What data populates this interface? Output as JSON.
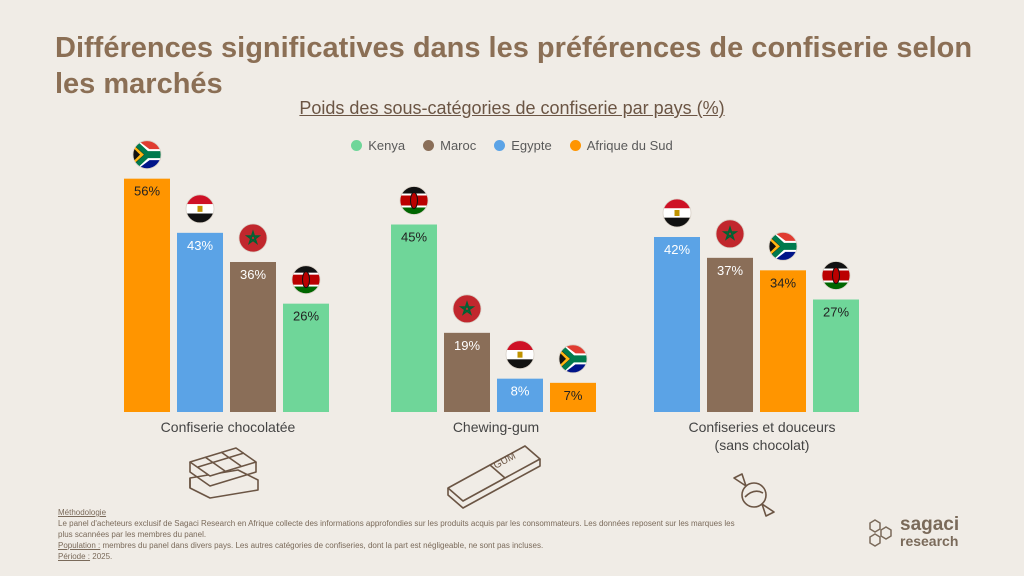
{
  "title": "Différences significatives dans les préférences de confiserie selon les marchés",
  "subtitle": "Poids des sous-catégories de confiserie par pays (%)",
  "colors": {
    "Kenya": "#6fd699",
    "Maroc": "#8a6e58",
    "Egypte": "#5ba3e6",
    "Afrique du Sud": "#ff9500"
  },
  "legend": [
    "Kenya",
    "Maroc",
    "Egypte",
    "Afrique du Sud"
  ],
  "chart_data": {
    "type": "bar",
    "ylabel": "%",
    "ylim": [
      0,
      60
    ],
    "groups": [
      {
        "category": "Confiserie chocolatée",
        "bars": [
          {
            "country": "Afrique du Sud",
            "value": 56,
            "label": "56%"
          },
          {
            "country": "Egypte",
            "value": 43,
            "label": "43%"
          },
          {
            "country": "Maroc",
            "value": 36,
            "label": "36%"
          },
          {
            "country": "Kenya",
            "value": 26,
            "label": "26%"
          }
        ]
      },
      {
        "category": "Chewing-gum",
        "bars": [
          {
            "country": "Kenya",
            "value": 45,
            "label": "45%"
          },
          {
            "country": "Maroc",
            "value": 19,
            "label": "19%"
          },
          {
            "country": "Egypte",
            "value": 8,
            "label": "8%"
          },
          {
            "country": "Afrique du Sud",
            "value": 7,
            "label": "7%"
          }
        ]
      },
      {
        "category": "Confiseries et douceurs (sans chocolat)",
        "bars": [
          {
            "country": "Egypte",
            "value": 42,
            "label": "42%"
          },
          {
            "country": "Maroc",
            "value": 37,
            "label": "37%"
          },
          {
            "country": "Afrique du Sud",
            "value": 34,
            "label": "34%"
          },
          {
            "country": "Kenya",
            "value": 27,
            "label": "27%"
          }
        ]
      }
    ]
  },
  "footnote": {
    "methodology_label": "Méthodologie",
    "methodology_text": "Le panel d'acheteurs exclusif de Sagaci Research en Afrique collecte des informations approfondies sur les produits acquis par les consommateurs. Les données reposent sur les marques les plus scannées par les membres du panel.",
    "population_label": "Population :",
    "population_text": " membres du panel dans divers pays. Les autres catégories de confiseries, dont la part est négligeable, ne sont pas incluses.",
    "period_label": "Période :",
    "period_text": " 2025."
  },
  "logo": {
    "line1": "sagaci",
    "line2": "research"
  },
  "icons": [
    "chocolate-bar-icon",
    "chewing-gum-icon",
    "candy-icon"
  ]
}
